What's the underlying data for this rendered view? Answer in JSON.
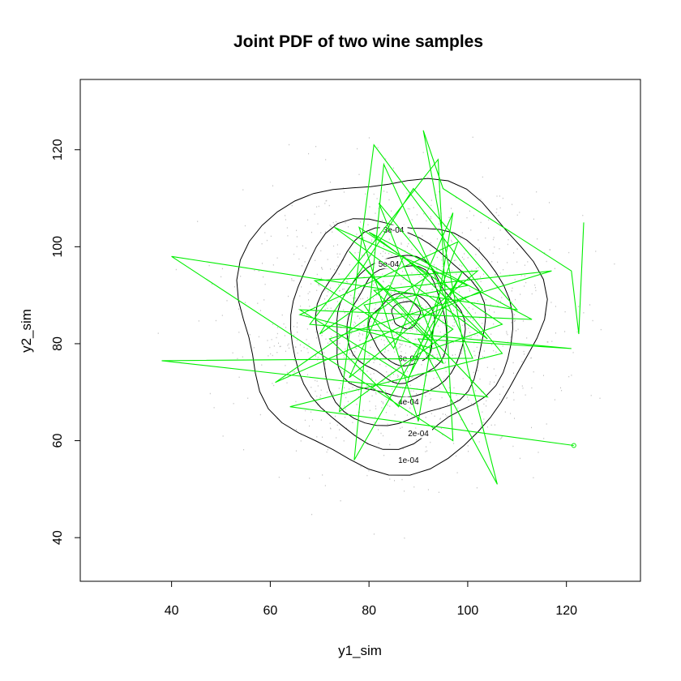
{
  "chart_data": {
    "type": "line",
    "title": "Joint PDF of two wine samples",
    "xlabel": "y1_sim",
    "ylabel": "y2_sim",
    "xlim": [
      21.5,
      135
    ],
    "ylim": [
      31,
      134.5
    ],
    "xticks": [
      "40",
      "60",
      "80",
      "100",
      "120"
    ],
    "yticks": [
      "40",
      "60",
      "80",
      "100",
      "120"
    ],
    "colors": {
      "scatter": "#bdbdbd",
      "contour": "#000000",
      "path": "#00ee00",
      "frame": "#000000"
    },
    "contours": [
      {
        "level_label": "1e-04",
        "center": [
          84,
          85
        ],
        "rx": 30.5,
        "ry": 30,
        "label_at": [
          88,
          56
        ]
      },
      {
        "level_label": "2e-04",
        "center": [
          86,
          83
        ],
        "rx": 22.5,
        "ry": 23,
        "label_at": [
          90,
          61.5
        ]
      },
      {
        "level_label": "3e-04",
        "center": [
          86,
          83
        ],
        "rx": 17,
        "ry": 20,
        "label_at": [
          85,
          103.5
        ]
      },
      {
        "level_label": "4e-04",
        "center": [
          86,
          83
        ],
        "rx": 13,
        "ry": 14.5,
        "label_at": [
          88,
          68
        ]
      },
      {
        "level_label": "5e-04",
        "center": [
          86,
          84
        ],
        "rx": 10,
        "ry": 12,
        "label_at": [
          84,
          96.5
        ]
      },
      {
        "level_label": "6e-04",
        "center": [
          87,
          83
        ],
        "rx": 6.5,
        "ry": 7.5,
        "label_at": [
          88,
          77
        ]
      },
      {
        "level_label": "",
        "center": [
          87.5,
          86
        ],
        "rx": 2.8,
        "ry": 2.8,
        "label_at": null
      }
    ],
    "series": [
      {
        "type": "path",
        "points": [
          [
            123.5,
            105
          ],
          [
            122.5,
            82
          ],
          [
            121,
            95
          ],
          [
            95,
            112
          ],
          [
            91,
            124
          ],
          [
            100,
            75
          ],
          [
            106,
            51
          ],
          [
            90,
            81
          ],
          [
            121,
            79
          ],
          [
            68,
            84
          ],
          [
            94,
            118
          ],
          [
            97,
            60
          ],
          [
            40,
            98
          ],
          [
            110,
            87
          ],
          [
            89,
            112
          ],
          [
            70,
            82
          ],
          [
            84,
            92
          ],
          [
            97,
            83
          ],
          [
            74,
            66
          ],
          [
            81,
            121
          ],
          [
            103,
            91
          ],
          [
            61,
            72
          ],
          [
            92,
            94
          ],
          [
            80,
            103
          ],
          [
            113,
            85
          ],
          [
            66,
            87
          ],
          [
            88,
            73
          ],
          [
            99,
            95
          ],
          [
            77,
            56
          ],
          [
            83,
            117
          ],
          [
            101,
            77
          ],
          [
            38,
            76.5
          ],
          [
            104,
            69
          ],
          [
            76,
            99
          ],
          [
            93,
            80
          ],
          [
            81,
            91
          ],
          [
            117,
            95
          ],
          [
            72,
            81
          ],
          [
            86,
            67
          ],
          [
            98,
            101
          ],
          [
            66,
            86
          ],
          [
            93,
            79
          ],
          [
            107,
            84
          ],
          [
            78,
            104
          ],
          [
            90,
            64
          ],
          [
            97,
            107
          ],
          [
            85,
            79
          ],
          [
            79,
            88
          ],
          [
            100,
            92
          ],
          [
            73,
            104
          ],
          [
            104,
            81
          ],
          [
            87,
            98
          ],
          [
            76,
            73
          ],
          [
            102,
            95
          ],
          [
            69,
            93
          ],
          [
            95,
            76
          ],
          [
            82,
            109
          ],
          [
            107,
            78
          ],
          [
            64,
            67
          ],
          [
            121.5,
            59
          ]
        ]
      }
    ],
    "scatter_density": {
      "center": [
        86,
        84
      ],
      "sd": [
        15,
        13
      ],
      "count": 1300
    }
  }
}
